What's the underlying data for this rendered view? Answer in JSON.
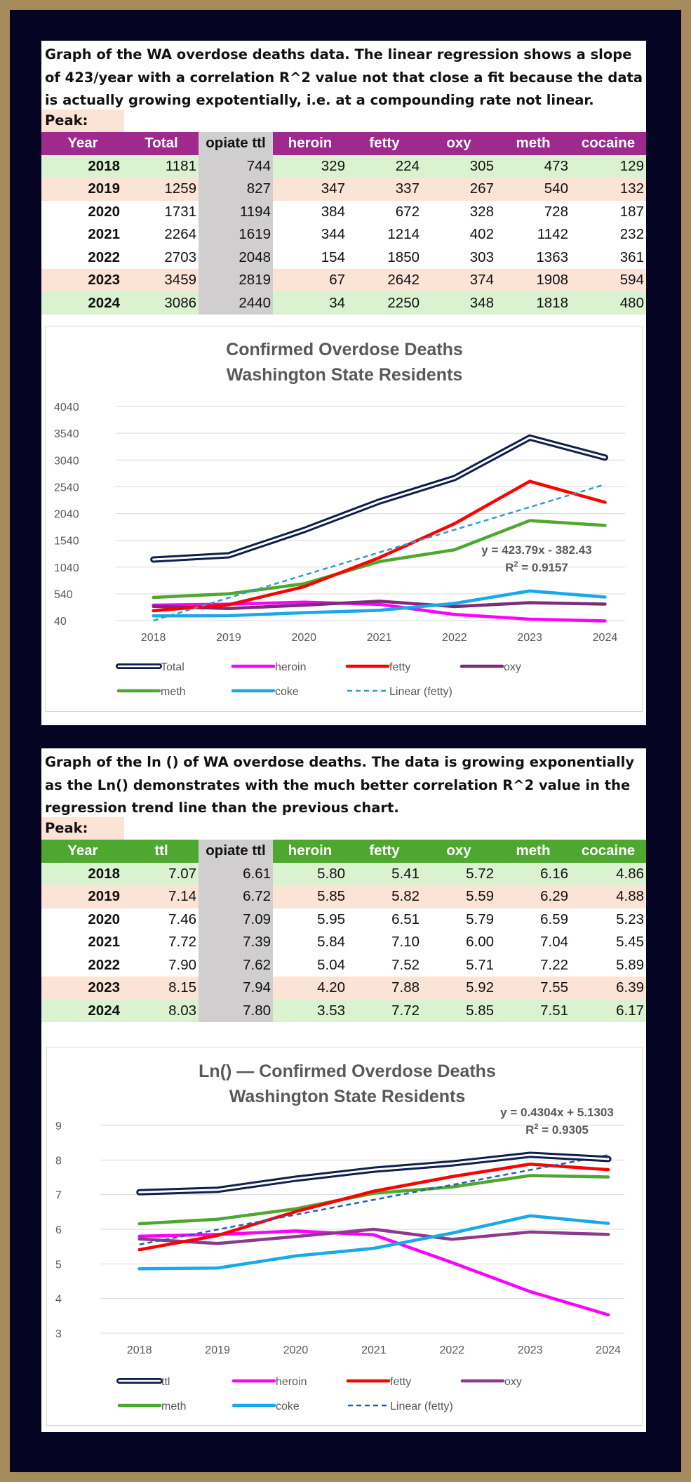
{
  "section1": {
    "intro": "Graph of  the WA overdose deaths data.  The linear regression shows a slope of 423/year with a correlation R^2 value not that close a fit because the data is actually growing expotentially, i.e. at a compounding rate not linear.",
    "peak_label": "Peak:",
    "header_color": "#a0298e",
    "headers": [
      "Year",
      "Total",
      "opiate ttl",
      "heroin",
      "fetty",
      "oxy",
      "meth",
      "cocaine"
    ],
    "rows": [
      {
        "style": "green",
        "cells": [
          "2018",
          "1181",
          "744",
          "329",
          "224",
          "305",
          "473",
          "129"
        ]
      },
      {
        "style": "peach",
        "cells": [
          "2019",
          "1259",
          "827",
          "347",
          "337",
          "267",
          "540",
          "132"
        ]
      },
      {
        "style": "white",
        "cells": [
          "2020",
          "1731",
          "1194",
          "384",
          "672",
          "328",
          "728",
          "187"
        ]
      },
      {
        "style": "white",
        "cells": [
          "2021",
          "2264",
          "1619",
          "344",
          "1214",
          "402",
          "1142",
          "232"
        ]
      },
      {
        "style": "white",
        "cells": [
          "2022",
          "2703",
          "2048",
          "154",
          "1850",
          "303",
          "1363",
          "361"
        ]
      },
      {
        "style": "peach",
        "cells": [
          "2023",
          "3459",
          "2819",
          "67",
          "2642",
          "374",
          "1908",
          "594"
        ]
      },
      {
        "style": "green",
        "cells": [
          "2024",
          "3086",
          "2440",
          "34",
          "2250",
          "348",
          "1818",
          "480"
        ]
      }
    ]
  },
  "section2": {
    "intro": "Graph of the ln () of WA overdose deaths. The data is growing exponentially as the Ln() demonstrates with the much better correlation R^2 value in the regression trend line than the previous chart.",
    "peak_label": "Peak:",
    "header_color": "#4ea72e",
    "headers": [
      "Year",
      "ttl",
      "opiate ttl",
      "heroin",
      "fetty",
      "oxy",
      "meth",
      "cocaine"
    ],
    "rows": [
      {
        "style": "green",
        "cells": [
          "2018",
          "7.07",
          "6.61",
          "5.80",
          "5.41",
          "5.72",
          "6.16",
          "4.86"
        ]
      },
      {
        "style": "peach",
        "cells": [
          "2019",
          "7.14",
          "6.72",
          "5.85",
          "5.82",
          "5.59",
          "6.29",
          "4.88"
        ]
      },
      {
        "style": "white",
        "cells": [
          "2020",
          "7.46",
          "7.09",
          "5.95",
          "6.51",
          "5.79",
          "6.59",
          "5.23"
        ]
      },
      {
        "style": "white",
        "cells": [
          "2021",
          "7.72",
          "7.39",
          "5.84",
          "7.10",
          "6.00",
          "7.04",
          "5.45"
        ]
      },
      {
        "style": "white",
        "cells": [
          "2022",
          "7.90",
          "7.62",
          "5.04",
          "7.52",
          "5.71",
          "7.22",
          "5.89"
        ]
      },
      {
        "style": "peach",
        "cells": [
          "2023",
          "8.15",
          "7.94",
          "4.20",
          "7.88",
          "5.92",
          "7.55",
          "6.39"
        ]
      },
      {
        "style": "green",
        "cells": [
          "2024",
          "8.03",
          "7.80",
          "3.53",
          "7.72",
          "5.85",
          "7.51",
          "6.17"
        ]
      }
    ]
  },
  "chart_data": [
    {
      "type": "line",
      "title": "Confirmed Overdose Deaths",
      "subtitle": "Washington State Residents",
      "x": [
        "2018",
        "2019",
        "2020",
        "2021",
        "2022",
        "2023",
        "2024"
      ],
      "ylim": [
        40,
        4040
      ],
      "yticks": [
        "40",
        "540",
        "1040",
        "1540",
        "2040",
        "2540",
        "3040",
        "3540",
        "4040"
      ],
      "grid": true,
      "legend_position": "bottom",
      "series": [
        {
          "name": "Total",
          "color": "#0f1f4b",
          "style": "double",
          "values": [
            1181,
            1259,
            1731,
            2264,
            2703,
            3459,
            3086
          ]
        },
        {
          "name": "heroin",
          "color": "#ff00ff",
          "style": "solid",
          "values": [
            329,
            347,
            384,
            344,
            154,
            67,
            34
          ]
        },
        {
          "name": "fetty",
          "color": "#ff0000",
          "style": "solid",
          "values": [
            224,
            337,
            672,
            1214,
            1850,
            2642,
            2250
          ]
        },
        {
          "name": "oxy",
          "color": "#7b2d7a",
          "style": "solid",
          "values": [
            305,
            267,
            328,
            402,
            303,
            374,
            348
          ]
        },
        {
          "name": "meth",
          "color": "#4ea72e",
          "style": "solid",
          "values": [
            473,
            540,
            728,
            1142,
            1363,
            1908,
            1818
          ]
        },
        {
          "name": "coke",
          "color": "#19a9e8",
          "style": "solid",
          "values": [
            129,
            132,
            187,
            232,
            361,
            594,
            480
          ]
        },
        {
          "name": "Linear (fetty)",
          "color": "#2f9bd4",
          "style": "dashed",
          "trend": {
            "slope": 423.79,
            "intercept": -382.43
          }
        }
      ],
      "annotation": {
        "equation": "y = 423.79x - 382.43",
        "r2_prefix": "R",
        "r2_sup": "2",
        "r2_value": " = 0.9157"
      }
    },
    {
      "type": "line",
      "title": "Ln() — Confirmed Overdose Deaths",
      "subtitle": "Washington State Residents",
      "x": [
        "2018",
        "2019",
        "2020",
        "2021",
        "2022",
        "2023",
        "2024"
      ],
      "ylim": [
        3,
        9
      ],
      "yticks": [
        "3",
        "4",
        "5",
        "6",
        "7",
        "8",
        "9"
      ],
      "grid": true,
      "legend_position": "bottom",
      "series": [
        {
          "name": "ttl",
          "color": "#0f1f4b",
          "style": "double",
          "values": [
            7.07,
            7.14,
            7.46,
            7.72,
            7.9,
            8.15,
            8.03
          ]
        },
        {
          "name": "heroin",
          "color": "#ff00ff",
          "style": "solid",
          "values": [
            5.8,
            5.85,
            5.95,
            5.84,
            5.04,
            4.2,
            3.53
          ]
        },
        {
          "name": "fetty",
          "color": "#ff0000",
          "style": "solid",
          "values": [
            5.41,
            5.82,
            6.51,
            7.1,
            7.52,
            7.88,
            7.72
          ]
        },
        {
          "name": "oxy",
          "color": "#8e3a8c",
          "style": "solid",
          "values": [
            5.72,
            5.59,
            5.79,
            6.0,
            5.71,
            5.92,
            5.85
          ]
        },
        {
          "name": "meth",
          "color": "#4ea72e",
          "style": "solid",
          "values": [
            6.16,
            6.29,
            6.59,
            7.04,
            7.22,
            7.55,
            7.51
          ]
        },
        {
          "name": "coke",
          "color": "#19a9e8",
          "style": "solid",
          "values": [
            4.86,
            4.88,
            5.23,
            5.45,
            5.89,
            6.39,
            6.17
          ]
        },
        {
          "name": "Linear (fetty)",
          "color": "#1f5fb0",
          "style": "dashed",
          "trend": {
            "slope": 0.4304,
            "intercept": 5.1303
          }
        }
      ],
      "annotation": {
        "equation": "y = 0.4304x + 5.1303",
        "r2_prefix": "R",
        "r2_sup": "2",
        "r2_value": " = 0.9305"
      }
    }
  ]
}
